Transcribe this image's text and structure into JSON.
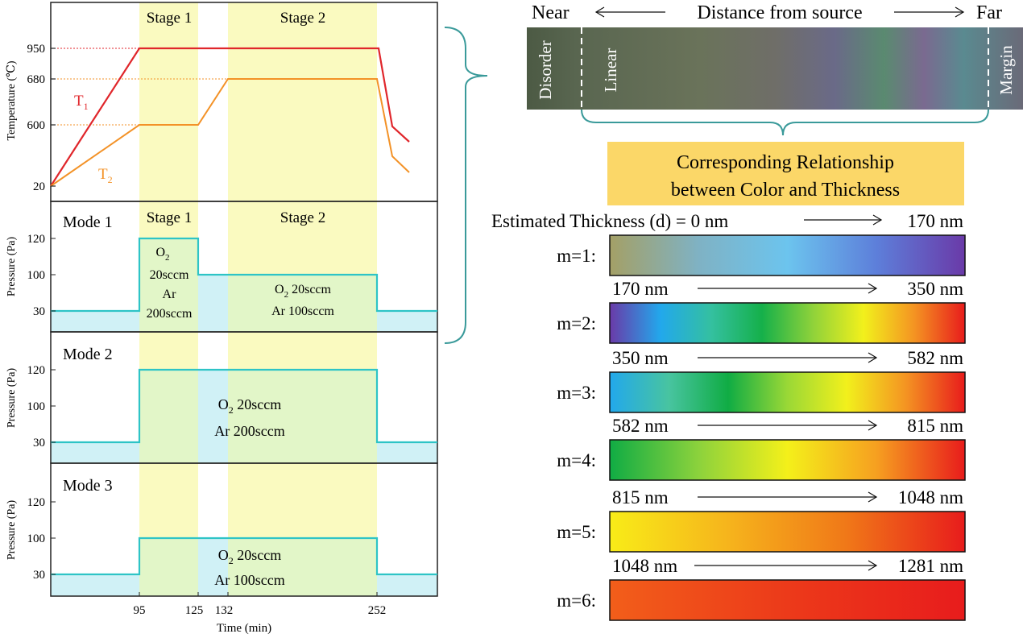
{
  "colors": {
    "t1": "#e0262b",
    "t2": "#f39227",
    "pressure": "#2ec4c6",
    "pressure_fill": "#c8eff4",
    "stage_fill": "#fafac0",
    "overlap_fill": "#e2f6c8",
    "banner_fill": "#fbd768",
    "bracket": "#3a9a9a"
  },
  "left": {
    "x_ticks": [
      "95",
      "125",
      "132",
      "252"
    ],
    "x_title": "Time (min)",
    "temperature": {
      "ylabel": "Temperature (℃)",
      "y_ticks": [
        "950",
        "680",
        "600",
        "20"
      ],
      "stage1": "Stage 1",
      "stage2": "Stage 2",
      "t1_label": "T",
      "t1_sub": "1",
      "t2_label": "T",
      "t2_sub": "2"
    },
    "pressure_ylabel": "Pressure (Pa)",
    "p_ticks": [
      "120",
      "100",
      "30"
    ],
    "mode1": {
      "title": "Mode 1",
      "stage1": "Stage 1",
      "stage2": "Stage 2",
      "s1_o2": "O",
      "s1_o2_sub": "2",
      "s1_o2_flow": "20sccm",
      "s1_ar": "Ar",
      "s1_ar_flow": "200sccm",
      "s2_o2": "O",
      "s2_o2_sub": "2",
      "s2_o2_flow": " 20sccm",
      "s2_ar": "Ar 100sccm"
    },
    "mode2": {
      "title": "Mode 2",
      "o2": "O",
      "o2_sub": "2",
      "o2_flow": " 20sccm",
      "ar": "Ar 200sccm"
    },
    "mode3": {
      "title": "Mode 3",
      "o2": "O",
      "o2_sub": "2",
      "o2_flow": " 20sccm",
      "ar": "Ar 100sccm"
    }
  },
  "right": {
    "near": "Near",
    "far": "Far",
    "distance": "Distance from source",
    "region_disorder": "Disorder",
    "region_linear": "Linear",
    "region_margin": "Margin",
    "banner_line1": "Corresponding Relationship",
    "banner_line2": "between Color and Thickness",
    "estimated_prefix": "Estimated Thickness (d) = 0 nm",
    "bars": [
      {
        "label": "m=1:",
        "start": "",
        "end": "170 nm",
        "colors": [
          "#a4a066",
          "#7fb2c4",
          "#6cc4ee",
          "#5d7fda",
          "#6a3aa8"
        ]
      },
      {
        "label": "m=2:",
        "start": "170 nm",
        "end": "350 nm",
        "colors": [
          "#6a3aa8",
          "#22a8ec",
          "#34c0a0",
          "#15b04a",
          "#8fd23a",
          "#f2f01c",
          "#f49422",
          "#e81c1c"
        ]
      },
      {
        "label": "m=3:",
        "start": "350 nm",
        "end": "582 nm",
        "colors": [
          "#22a8ec",
          "#48c4a0",
          "#10ac44",
          "#9ad836",
          "#f2f01c",
          "#f49422",
          "#e81c1c"
        ]
      },
      {
        "label": "m=4:",
        "start": "582 nm",
        "end": "815 nm",
        "colors": [
          "#10ac44",
          "#8cd23c",
          "#f4f01a",
          "#f6a020",
          "#e81c1c"
        ]
      },
      {
        "label": "m=5:",
        "start": "815 nm",
        "end": "1048 nm",
        "colors": [
          "#f8ec18",
          "#f6b41c",
          "#f07818",
          "#e81c1c"
        ]
      },
      {
        "label": "m=6:",
        "start": "1048 nm",
        "end": "1281 nm",
        "colors": [
          "#f25e1a",
          "#ec3a1a",
          "#e81c1c"
        ]
      }
    ]
  }
}
